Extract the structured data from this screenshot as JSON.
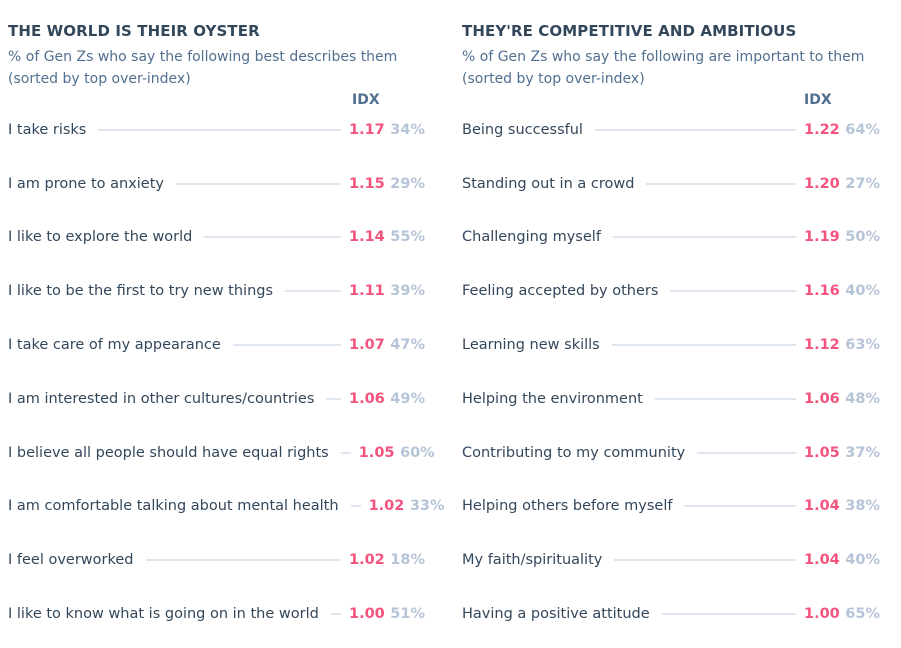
{
  "colors": {
    "title": "#33475b",
    "subtitle": "#516f90",
    "index": "#f2547d",
    "percent": "#b6c4d8",
    "leader_line": "#dfe6f0"
  },
  "chart_data": [
    {
      "type": "table",
      "title": "THE WORLD IS THEIR OYSTER",
      "subtitle_line1": "% of Gen Zs who say the following best describes them",
      "subtitle_line2": "(sorted by top over-index)",
      "columns": [
        "",
        "IDX",
        ""
      ],
      "rows": [
        {
          "label": "I take risks",
          "idx": "1.17",
          "pct": "34%"
        },
        {
          "label": "I am prone to anxiety",
          "idx": "1.15",
          "pct": "29%"
        },
        {
          "label": "I like to explore the world",
          "idx": "1.14",
          "pct": "55%"
        },
        {
          "label": "I like to be the first to try new things",
          "idx": "1.11",
          "pct": "39%"
        },
        {
          "label": "I take care of my appearance",
          "idx": "1.07",
          "pct": "47%"
        },
        {
          "label": "I am interested in other cultures/countries",
          "idx": "1.06",
          "pct": "49%"
        },
        {
          "label": "I believe all people should have equal rights",
          "idx": "1.05",
          "pct": "60%"
        },
        {
          "label": "I am comfortable talking about mental health",
          "idx": "1.02",
          "pct": "33%"
        },
        {
          "label": "I feel overworked",
          "idx": "1.02",
          "pct": "18%"
        },
        {
          "label": "I like to know what is going on in the world",
          "idx": "1.00",
          "pct": "51%"
        }
      ]
    },
    {
      "type": "table",
      "title": "THEY'RE COMPETITIVE AND AMBITIOUS",
      "subtitle_line1": "% of Gen Zs who say the following are important to them",
      "subtitle_line2": "(sorted by top over-index)",
      "columns": [
        "",
        "IDX",
        ""
      ],
      "rows": [
        {
          "label": "Being successful",
          "idx": "1.22",
          "pct": "64%"
        },
        {
          "label": "Standing out in a crowd",
          "idx": "1.20",
          "pct": "27%"
        },
        {
          "label": "Challenging myself",
          "idx": "1.19",
          "pct": "50%"
        },
        {
          "label": "Feeling accepted by others",
          "idx": "1.16",
          "pct": "40%"
        },
        {
          "label": "Learning new skills",
          "idx": "1.12",
          "pct": "63%"
        },
        {
          "label": "Helping the environment",
          "idx": "1.06",
          "pct": "48%"
        },
        {
          "label": "Contributing to my community",
          "idx": "1.05",
          "pct": "37%"
        },
        {
          "label": "Helping others before myself",
          "idx": "1.04",
          "pct": "38%"
        },
        {
          "label": "My faith/spirituality",
          "idx": "1.04",
          "pct": "40%"
        },
        {
          "label": "Having a positive attitude",
          "idx": "1.00",
          "pct": "65%"
        }
      ]
    }
  ]
}
